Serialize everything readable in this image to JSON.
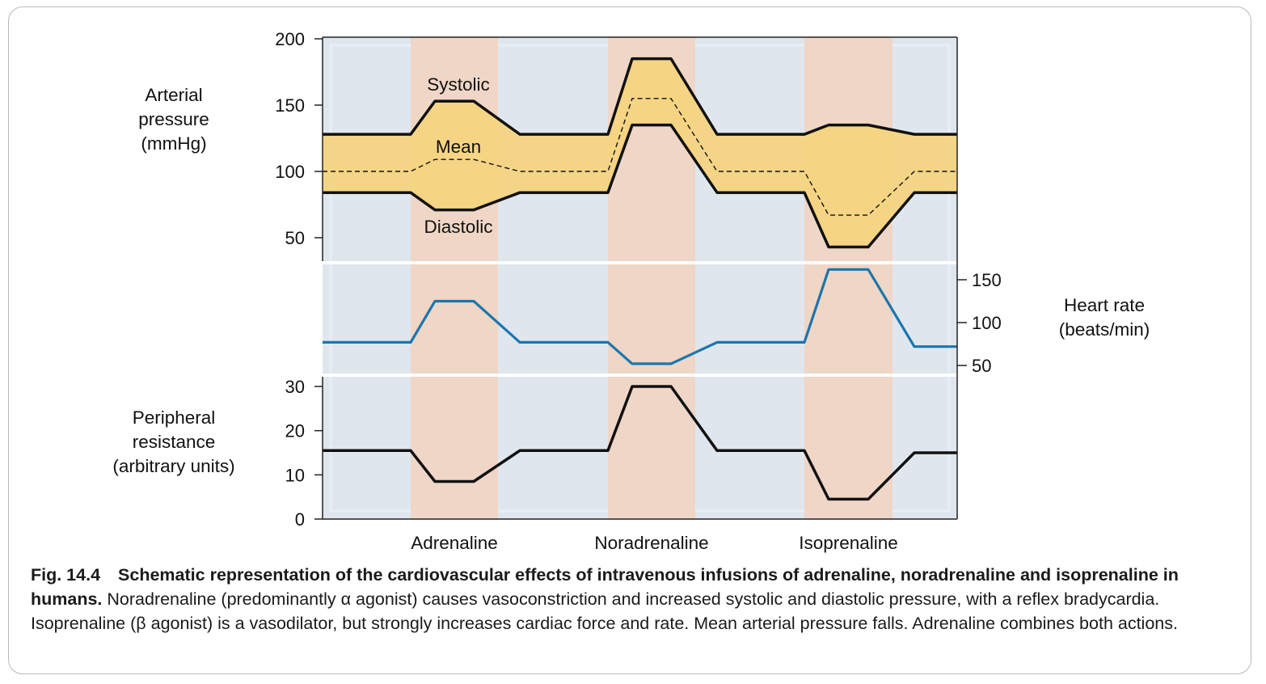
{
  "chart_data": {
    "type": "line",
    "x_categories": [
      "Adrenaline",
      "Noradrenaline",
      "Isoprenaline"
    ],
    "panels": [
      {
        "id": "arterial_pressure",
        "ylabel": [
          "Arterial",
          "pressure",
          "(mmHg)"
        ],
        "ylim": [
          30,
          200
        ],
        "yticks": [
          "50",
          "100",
          "150",
          "200"
        ],
        "ytick_values": [
          50,
          100,
          150,
          200
        ],
        "series": [
          {
            "name": "Systolic",
            "style": "solid",
            "baseline": 128,
            "adrenaline": 153,
            "noradrenaline": 185,
            "isoprenaline": 135,
            "final": 128
          },
          {
            "name": "Mean",
            "style": "dashed",
            "baseline": 100,
            "adrenaline": 109,
            "noradrenaline": 155,
            "isoprenaline": 67,
            "final": 100
          },
          {
            "name": "Diastolic",
            "style": "solid",
            "baseline": 84,
            "adrenaline": 71,
            "noradrenaline": 135,
            "isoprenaline": 43,
            "final": 84
          }
        ]
      },
      {
        "id": "heart_rate",
        "ylabel": [
          "Heart rate",
          "(beats/min)"
        ],
        "ylim": [
          40,
          160
        ],
        "yticks": [
          "50",
          "100",
          "150"
        ],
        "ytick_values": [
          50,
          100,
          150
        ],
        "series": [
          {
            "name": "Heart rate",
            "baseline": 77,
            "adrenaline": 125,
            "noradrenaline": 52,
            "isoprenaline": 162,
            "final": 72
          }
        ]
      },
      {
        "id": "peripheral_resistance",
        "ylabel": [
          "Peripheral",
          "resistance",
          "(arbitrary units)"
        ],
        "ylim": [
          0,
          30
        ],
        "yticks": [
          "0",
          "10",
          "20",
          "30"
        ],
        "ytick_values": [
          0,
          10,
          20,
          30
        ],
        "series": [
          {
            "name": "Peripheral resistance",
            "baseline": 15.5,
            "adrenaline": 8.5,
            "noradrenaline": 30,
            "isoprenaline": 4.5,
            "final": 15
          }
        ]
      }
    ],
    "annotations": [
      "Systolic",
      "Mean",
      "Diastolic"
    ]
  },
  "colors": {
    "background_panel": "#dfe6ee",
    "infusion_band": "#efd6c6",
    "pressure_fill": "#f5d47e",
    "heart_rate_line": "#1a76ad",
    "line": "#111111"
  },
  "caption": {
    "fig_number": "Fig. 14.4",
    "bold_text": "Schematic representation of the cardiovascular effects of intravenous infusions of adrenaline, noradrenaline and isoprenaline in humans.",
    "body_text": " Noradrenaline (predominantly α agonist) causes vasoconstriction and increased systolic and diastolic pressure, with a reflex bradycardia. Isoprenaline (β agonist) is a vasodilator, but strongly increases cardiac force and rate. Mean arterial pressure falls. Adrenaline combines both actions."
  }
}
